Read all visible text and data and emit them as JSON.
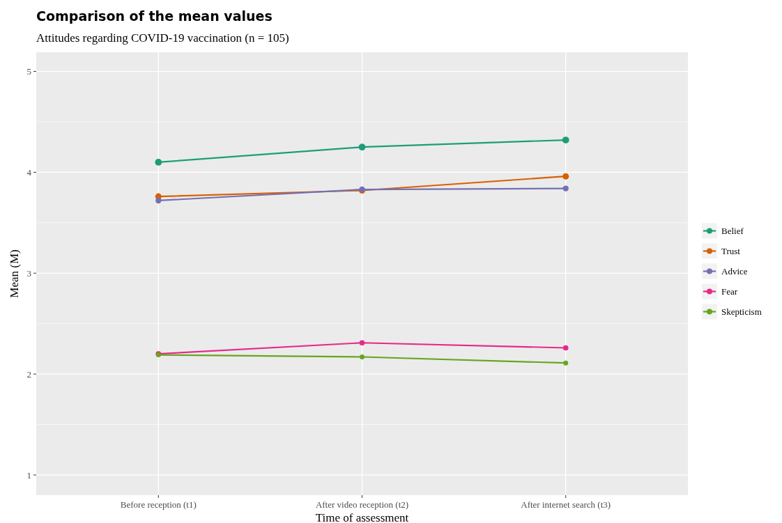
{
  "chart_data": {
    "type": "line",
    "title": "Comparison of the mean values",
    "subtitle": "Attitudes regarding COVID-19 vaccination (n = 105)",
    "xlabel": "Time of assessment",
    "ylabel": "Mean (M)",
    "categories": [
      "Before reception (t1)",
      "After video reception (t2)",
      "After internet search (t3)"
    ],
    "series": [
      {
        "name": "Belief",
        "color": "#1b9e77",
        "values": [
          4.1,
          4.25,
          4.32
        ]
      },
      {
        "name": "Trust",
        "color": "#d95f02",
        "values": [
          3.76,
          3.82,
          3.96
        ]
      },
      {
        "name": "Advice",
        "color": "#7570b3",
        "values": [
          3.72,
          3.83,
          3.84
        ]
      },
      {
        "name": "Fear",
        "color": "#e7298a",
        "values": [
          2.2,
          2.31,
          2.26
        ]
      },
      {
        "name": "Skepticism",
        "color": "#66a61e",
        "values": [
          2.19,
          2.17,
          2.11
        ]
      }
    ],
    "ylim": [
      0.8,
      5.19
    ],
    "yticks": [
      1,
      2,
      3,
      4,
      5
    ],
    "grid": true,
    "legend": "right",
    "marker": "circle",
    "line_style": "solid"
  }
}
